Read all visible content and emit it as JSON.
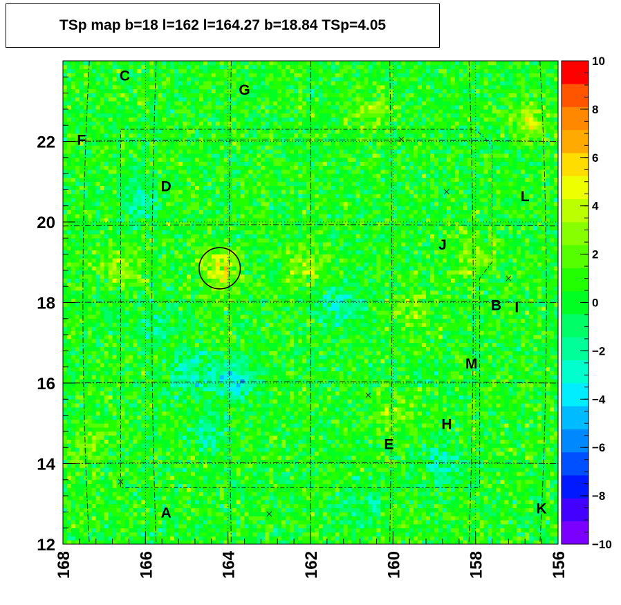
{
  "chart_data": {
    "type": "heatmap",
    "title": "TSp map b=18 l=162 l=164.27 b=18.84 TSp=4.05",
    "x_axis": {
      "min": 156,
      "max": 168,
      "reversed": true,
      "ticks": [
        168,
        166,
        164,
        162,
        160,
        158,
        156
      ]
    },
    "y_axis": {
      "min": 12,
      "max": 24,
      "ticks": [
        12,
        14,
        16,
        18,
        20,
        22
      ]
    },
    "colorbar": {
      "min": -10,
      "max": 10,
      "ticks": [
        10,
        8,
        6,
        4,
        2,
        0,
        -2,
        -4,
        -6,
        -8,
        -10
      ],
      "palette": [
        "#7b00ff",
        "#4400ff",
        "#0019ff",
        "#0050ff",
        "#0088ff",
        "#00bbff",
        "#00eeff",
        "#00ffcc",
        "#00ff99",
        "#00ff66",
        "#00ff22",
        "#22ff00",
        "#55ff00",
        "#88ff00",
        "#bbff00",
        "#eeff00",
        "#ffdd00",
        "#ffaa00",
        "#ff8800",
        "#ff5500",
        "#ff0000"
      ]
    },
    "background_value": 0.5,
    "hotspots": [
      {
        "l": 164.2,
        "b": 18.85,
        "value": 4.0
      },
      {
        "l": 163.8,
        "b": 16.1,
        "value": -3.8
      },
      {
        "l": 164.9,
        "b": 16.2,
        "value": -3.0
      },
      {
        "l": 161.3,
        "b": 18.0,
        "value": -3.0
      },
      {
        "l": 166.7,
        "b": 18.9,
        "value": 2.5
      },
      {
        "l": 162.1,
        "b": 18.9,
        "value": 2.5
      },
      {
        "l": 158.1,
        "b": 19.1,
        "value": 2.6
      },
      {
        "l": 159.5,
        "b": 17.8,
        "value": 2.2
      },
      {
        "l": 156.7,
        "b": 22.5,
        "value": 2.8
      },
      {
        "l": 160.5,
        "b": 22.7,
        "value": 2.2
      },
      {
        "l": 166.2,
        "b": 20.5,
        "value": -2.2
      },
      {
        "l": 158.8,
        "b": 14.0,
        "value": -2.5
      },
      {
        "l": 160.8,
        "b": 13.0,
        "value": -2.0
      },
      {
        "l": 164.5,
        "b": 14.8,
        "value": -2.0
      },
      {
        "l": 167.5,
        "b": 14.5,
        "value": 2.0
      },
      {
        "l": 165.8,
        "b": 17.5,
        "value": -2.0
      },
      {
        "l": 160.0,
        "b": 15.2,
        "value": 2.0
      }
    ],
    "source_circle": {
      "l": 164.2,
      "b": 18.85,
      "radius": 0.5
    },
    "region_labels": [
      {
        "text": "C",
        "l": 166.5,
        "b": 23.65
      },
      {
        "text": "G",
        "l": 163.6,
        "b": 23.3
      },
      {
        "text": "F",
        "l": 167.55,
        "b": 22.05
      },
      {
        "text": "D",
        "l": 165.5,
        "b": 20.9
      },
      {
        "text": "L",
        "l": 156.8,
        "b": 20.65
      },
      {
        "text": "J",
        "l": 158.8,
        "b": 19.45
      },
      {
        "text": "B",
        "l": 157.5,
        "b": 17.95
      },
      {
        "text": "I",
        "l": 157.0,
        "b": 17.9
      },
      {
        "text": "M",
        "l": 158.1,
        "b": 16.5
      },
      {
        "text": "H",
        "l": 158.7,
        "b": 15.0
      },
      {
        "text": "E",
        "l": 160.1,
        "b": 14.5
      },
      {
        "text": "A",
        "l": 165.5,
        "b": 12.8
      },
      {
        "text": "K",
        "l": 156.4,
        "b": 12.9
      }
    ],
    "cross_markers": [
      {
        "l": 159.8,
        "b": 22.05
      },
      {
        "l": 158.7,
        "b": 20.75
      },
      {
        "l": 157.2,
        "b": 18.6
      },
      {
        "l": 160.6,
        "b": 15.7
      },
      {
        "l": 163.0,
        "b": 12.75
      },
      {
        "l": 166.6,
        "b": 13.55
      }
    ],
    "dotted_grid_l": [
      168,
      166,
      164,
      162,
      160,
      158,
      156
    ],
    "dotted_grid_b": [
      14,
      16,
      18,
      20,
      22
    ],
    "dashdot_l": [
      167.6,
      165.9,
      164.0,
      162.0,
      160.0,
      158.0,
      156.2
    ],
    "dashdot_b": [
      14.0,
      16.0,
      18.0,
      19.9,
      22.0
    ],
    "field_outline": [
      [
        166.6,
        22.3
      ],
      [
        158.0,
        22.3
      ],
      [
        157.6,
        21.9
      ],
      [
        157.6,
        19.0
      ],
      [
        157.9,
        18.6
      ],
      [
        157.9,
        14.0
      ],
      [
        157.9,
        13.4
      ],
      [
        166.6,
        13.4
      ],
      [
        166.6,
        14.0
      ],
      [
        166.6,
        22.3
      ]
    ]
  }
}
